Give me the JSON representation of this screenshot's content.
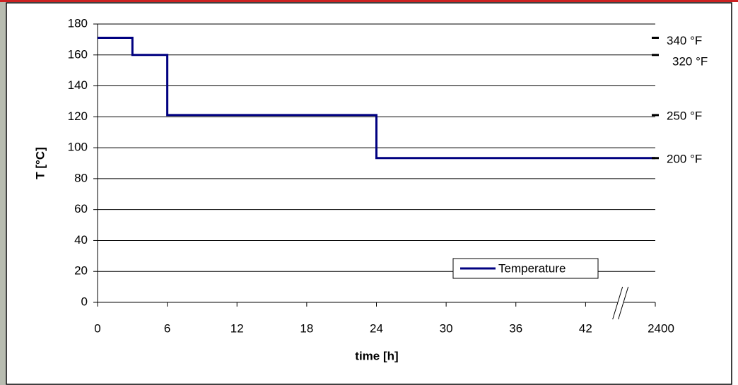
{
  "chart_data": {
    "type": "line",
    "x_label": "time [h]",
    "y_label": "T [°C]",
    "x": [
      0,
      3,
      3,
      6,
      6,
      24,
      24,
      2400
    ],
    "series": [
      {
        "name": "Temperature",
        "color": "#000080",
        "values": [
          171.1,
          171.1,
          160,
          160,
          121.1,
          121.1,
          93.3,
          93.3
        ]
      }
    ],
    "xlim": [
      0,
      2400
    ],
    "xticks": [
      0,
      6,
      12,
      18,
      24,
      30,
      36,
      42,
      2400
    ],
    "x_axis_break": true,
    "ylim": [
      0,
      180
    ],
    "yticks": [
      0,
      20,
      40,
      60,
      80,
      100,
      120,
      140,
      160,
      180
    ],
    "grid": true,
    "legend": "lower right",
    "annotations": [
      {
        "text": "340 °F",
        "y": 171.1
      },
      {
        "text": "320 °F",
        "y": 160
      },
      {
        "text": "250 °F",
        "y": 121.1
      },
      {
        "text": "200 °F",
        "y": 93.3
      }
    ]
  }
}
